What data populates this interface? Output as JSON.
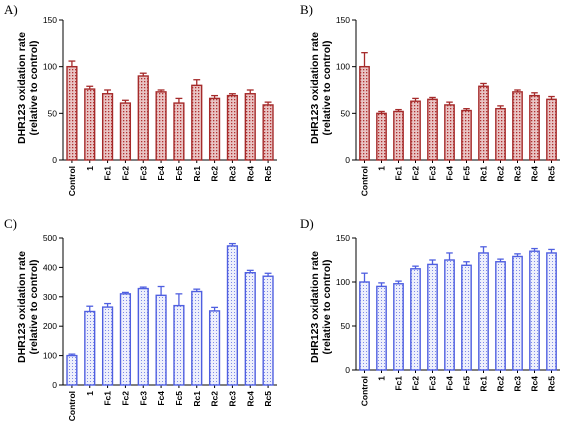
{
  "chart_data": [
    {
      "panel": "A)",
      "type": "bar",
      "ylabel": [
        "DHR123 oxidation rate",
        "(relative to control)"
      ],
      "ylim": [
        0,
        150
      ],
      "yticks": [
        0,
        50,
        100,
        150
      ],
      "categories": [
        "Control",
        "1",
        "Fc1",
        "Fc2",
        "Fc3",
        "Fc4",
        "Fc5",
        "Rc1",
        "Rc2",
        "Rc3",
        "Rc4",
        "Rc5"
      ],
      "values": [
        100,
        76,
        71,
        61,
        90,
        73,
        61,
        80,
        66,
        69,
        71,
        59
      ],
      "errors": [
        6,
        3,
        4,
        3,
        3,
        2,
        5,
        6,
        3,
        2,
        4,
        3
      ],
      "color": "#a52a2a",
      "fill": "#d99a9a"
    },
    {
      "panel": "B)",
      "type": "bar",
      "ylabel": [
        "DHR123 oxidation rate",
        "(relative to control)"
      ],
      "ylim": [
        0,
        150
      ],
      "yticks": [
        0,
        50,
        100,
        150
      ],
      "categories": [
        "Control",
        "1",
        "Fc1",
        "Fc2",
        "Fc3",
        "Fc4",
        "Fc5",
        "Rc1",
        "Rc2",
        "Rc3",
        "Rc4",
        "Rc5"
      ],
      "values": [
        100,
        50,
        52,
        63,
        65,
        59,
        53,
        79,
        55,
        73,
        69,
        65
      ],
      "errors": [
        15,
        2,
        2,
        3,
        2,
        3,
        2,
        3,
        3,
        2,
        3,
        3
      ],
      "color": "#a52a2a",
      "fill": "#d99a9a"
    },
    {
      "panel": "C)",
      "type": "bar",
      "ylabel": [
        "DHR123 oxidation rate",
        "(relative to control)"
      ],
      "ylim": [
        0,
        500
      ],
      "yticks": [
        0,
        100,
        200,
        300,
        400,
        500
      ],
      "categories": [
        "Control",
        "1",
        "Fc1",
        "Fc2",
        "Fc3",
        "Fc4",
        "Fc5",
        "Rc1",
        "Rc2",
        "Rc3",
        "Rc4",
        "Rc5"
      ],
      "values": [
        100,
        250,
        265,
        310,
        328,
        305,
        270,
        318,
        252,
        473,
        382,
        370
      ],
      "errors": [
        5,
        18,
        12,
        5,
        5,
        30,
        40,
        8,
        12,
        8,
        8,
        10
      ],
      "color": "#4f5fe0",
      "fill": "#c9cdf5"
    },
    {
      "panel": "D)",
      "type": "bar",
      "ylabel": [
        "DHR123 oxidation rate",
        "(relative to control)"
      ],
      "ylim": [
        0,
        150
      ],
      "yticks": [
        0,
        50,
        100,
        150
      ],
      "categories": [
        "Control",
        "1",
        "Fc1",
        "Fc2",
        "Fc3",
        "Fc4",
        "Fc5",
        "Rc1",
        "Rc2",
        "Rc3",
        "Rc4",
        "Rc5"
      ],
      "values": [
        100,
        95,
        98,
        115,
        120,
        125,
        119,
        133,
        123,
        129,
        135,
        133
      ],
      "errors": [
        10,
        4,
        3,
        3,
        5,
        8,
        4,
        7,
        3,
        3,
        3,
        4
      ],
      "color": "#4f5fe0",
      "fill": "#c9cdf5"
    }
  ]
}
